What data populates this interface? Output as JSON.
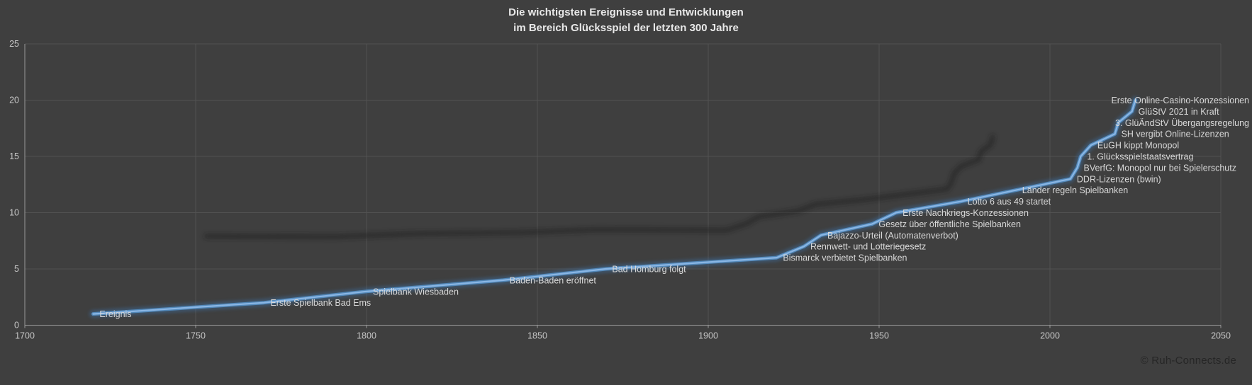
{
  "header": {
    "lines": [
      "Die wichtigsten Ereignisse und Entwicklungen",
      "im Bereich Glücksspiel der letzten 300 Jahre"
    ]
  },
  "footer": {
    "copyright": "© Ruh-Connects.de"
  },
  "colors": {
    "background": "#3F3F3F",
    "grid": "#525252",
    "axis": "#9A9A9A",
    "tick_label": "#C6C6C6",
    "title": "#E8E8E8",
    "data_label": "#D8D8D8",
    "line_core": "#8AB6E4",
    "line_main": "#5B9BD5",
    "line_glow": "#3E6FA3",
    "line_shadow": "#1C1C1C",
    "copyright": "#262626"
  },
  "chart_data": {
    "type": "line",
    "title": "Die wichtigsten Ereignisse und Entwicklungen im Bereich Glücksspiel der letzten 300 Jahre",
    "xlabel": "",
    "ylabel": "",
    "grid": true,
    "legend_position": "none",
    "series_name": "Ereignis",
    "x_axis": {
      "min": 1700,
      "max": 2050,
      "tick_interval": 50,
      "ticks": [
        1700,
        1750,
        1800,
        1850,
        1900,
        1950,
        2000,
        2050
      ]
    },
    "y_axis": {
      "min": 0,
      "max": 25,
      "tick_interval": 5,
      "ticks": [
        0,
        5,
        10,
        15,
        20,
        25
      ]
    },
    "points": [
      {
        "year": 1720,
        "value": 1,
        "label": "Ereignis"
      },
      {
        "year": 1770,
        "value": 2,
        "label": "Erste Spielbank Bad Ems"
      },
      {
        "year": 1800,
        "value": 3,
        "label": "Spielbank Wiesbaden"
      },
      {
        "year": 1840,
        "value": 4,
        "label": "Baden-Baden eröffnet"
      },
      {
        "year": 1870,
        "value": 5,
        "label": "Bad Homburg folgt"
      },
      {
        "year": 1920,
        "value": 6,
        "label": "Bismarck verbietet Spielbanken"
      },
      {
        "year": 1928,
        "value": 7,
        "label": "Rennwett- und Lotteriegesetz"
      },
      {
        "year": 1933,
        "value": 8,
        "label": "Bajazzo-Urteil (Automatenverbot)"
      },
      {
        "year": 1948,
        "value": 9,
        "label": "Gesetz über öffentliche Spielbanken"
      },
      {
        "year": 1955,
        "value": 10,
        "label": "Erste Nachkriegs-Konzessionen"
      },
      {
        "year": 1974,
        "value": 11,
        "label": "Lotto 6 aus 49 startet"
      },
      {
        "year": 1990,
        "value": 12,
        "label": "Länder regeln Spielbanken"
      },
      {
        "year": 2006,
        "value": 13,
        "label": "DDR-Lizenzen (bwin)"
      },
      {
        "year": 2008,
        "value": 14,
        "label": "BVerfG: Monopol nur bei Spielerschutz"
      },
      {
        "year": 2009,
        "value": 15,
        "label": "1. Glücksspielstaatsvertrag"
      },
      {
        "year": 2012,
        "value": 16,
        "label": "EuGH kippt Monopol"
      },
      {
        "year": 2019,
        "value": 17,
        "label": "SH vergibt Online-Lizenzen"
      },
      {
        "year": 2020,
        "value": 18,
        "label": "3. GlüÄndStV Übergangsregelung"
      },
      {
        "year": 2024,
        "value": 19,
        "label": "GlüStV 2021 in Kraft"
      },
      {
        "year": 2025,
        "value": 20,
        "label": "Erste Online-Casino-Konzessionen"
      }
    ]
  }
}
